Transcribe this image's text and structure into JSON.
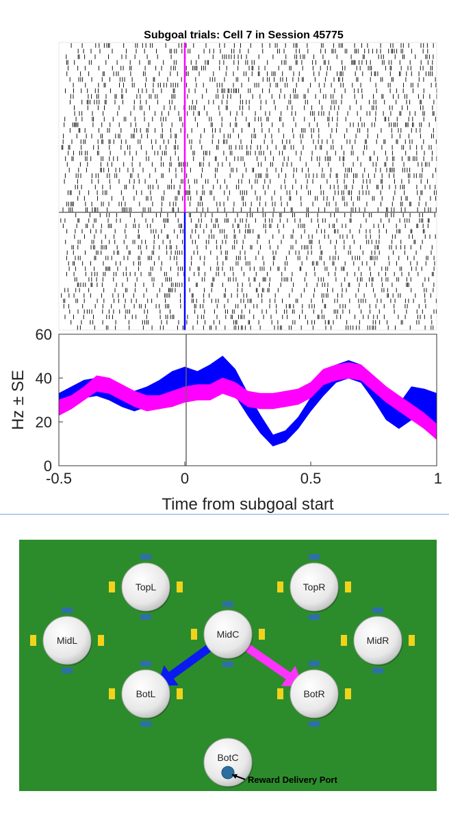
{
  "chart_data": [
    {
      "type": "raster",
      "title": "Subgoal trials: Cell 7 in Session 45775",
      "groups": [
        {
          "name": "",
          "color": "#ff00ff",
          "trial_count": 30
        },
        {
          "name": "",
          "color": "#0000ff",
          "trial_count": 22
        }
      ],
      "xlim": [
        -0.5,
        1
      ]
    },
    {
      "type": "area",
      "title": "",
      "xlabel": "Time from subgoal start",
      "ylabel": "Hz ± SE",
      "xlim": [
        -0.5,
        1
      ],
      "ylim": [
        0,
        60
      ],
      "xticks": [
        -0.5,
        0,
        0.5,
        1
      ],
      "xtick_labels": [
        "-0.5",
        "0",
        "0.5",
        "1"
      ],
      "yticks": [
        0,
        20,
        40,
        60
      ],
      "ytick_labels": [
        "0",
        "20",
        "40",
        "60"
      ],
      "vline_x": 0,
      "series": [
        {
          "color": "#0000ff",
          "x": [
            -0.5,
            -0.45,
            -0.4,
            -0.35,
            -0.3,
            -0.25,
            -0.2,
            -0.15,
            -0.1,
            -0.05,
            0,
            0.05,
            0.1,
            0.15,
            0.2,
            0.25,
            0.3,
            0.35,
            0.4,
            0.45,
            0.5,
            0.55,
            0.6,
            0.65,
            0.7,
            0.75,
            0.8,
            0.85,
            0.9,
            0.95,
            1.0
          ],
          "lower": [
            27,
            29,
            31,
            32,
            30,
            27,
            25,
            27,
            30,
            34,
            35,
            33,
            34,
            37,
            32,
            23,
            15,
            9,
            11,
            17,
            25,
            32,
            38,
            40,
            38,
            30,
            21,
            17,
            21,
            19,
            17
          ],
          "upper": [
            33,
            36,
            39,
            40,
            39,
            36,
            34,
            36,
            39,
            43,
            45,
            43,
            46,
            50,
            44,
            33,
            23,
            14,
            16,
            22,
            31,
            39,
            46,
            48,
            46,
            38,
            30,
            28,
            36,
            35,
            33
          ]
        },
        {
          "color": "#ff00ff",
          "x": [
            -0.5,
            -0.45,
            -0.4,
            -0.35,
            -0.3,
            -0.25,
            -0.2,
            -0.15,
            -0.1,
            -0.05,
            0,
            0.05,
            0.1,
            0.15,
            0.2,
            0.25,
            0.3,
            0.35,
            0.4,
            0.45,
            0.5,
            0.55,
            0.6,
            0.65,
            0.7,
            0.75,
            0.8,
            0.85,
            0.9,
            0.95,
            1.0
          ],
          "lower": [
            23,
            26,
            30,
            34,
            33,
            30,
            27,
            25,
            26,
            27,
            29,
            30,
            30,
            33,
            31,
            27,
            26,
            26,
            27,
            28,
            31,
            37,
            39,
            40,
            39,
            34,
            29,
            25,
            21,
            17,
            12
          ],
          "upper": [
            30,
            32,
            36,
            41,
            40,
            37,
            34,
            32,
            32,
            34,
            36,
            37,
            37,
            40,
            38,
            34,
            33,
            33,
            34,
            35,
            38,
            44,
            46,
            47,
            46,
            41,
            36,
            32,
            28,
            24,
            19
          ]
        }
      ]
    }
  ],
  "maze": {
    "background_color": "#2c8c2c",
    "nodes": [
      {
        "label": "TopL"
      },
      {
        "label": "TopR"
      },
      {
        "label": "MidL"
      },
      {
        "label": "MidC"
      },
      {
        "label": "MidR"
      },
      {
        "label": "BotL"
      },
      {
        "label": "BotR"
      },
      {
        "label": "BotC"
      }
    ],
    "arrows": [
      {
        "from": "MidC",
        "to": "BotL",
        "color": "#0a1af0"
      },
      {
        "from": "MidC",
        "to": "BotR",
        "color": "#ff33ff"
      }
    ],
    "reward_port_label": "Reward Delivery Port",
    "reward_port_color": "#2a6f9e"
  }
}
